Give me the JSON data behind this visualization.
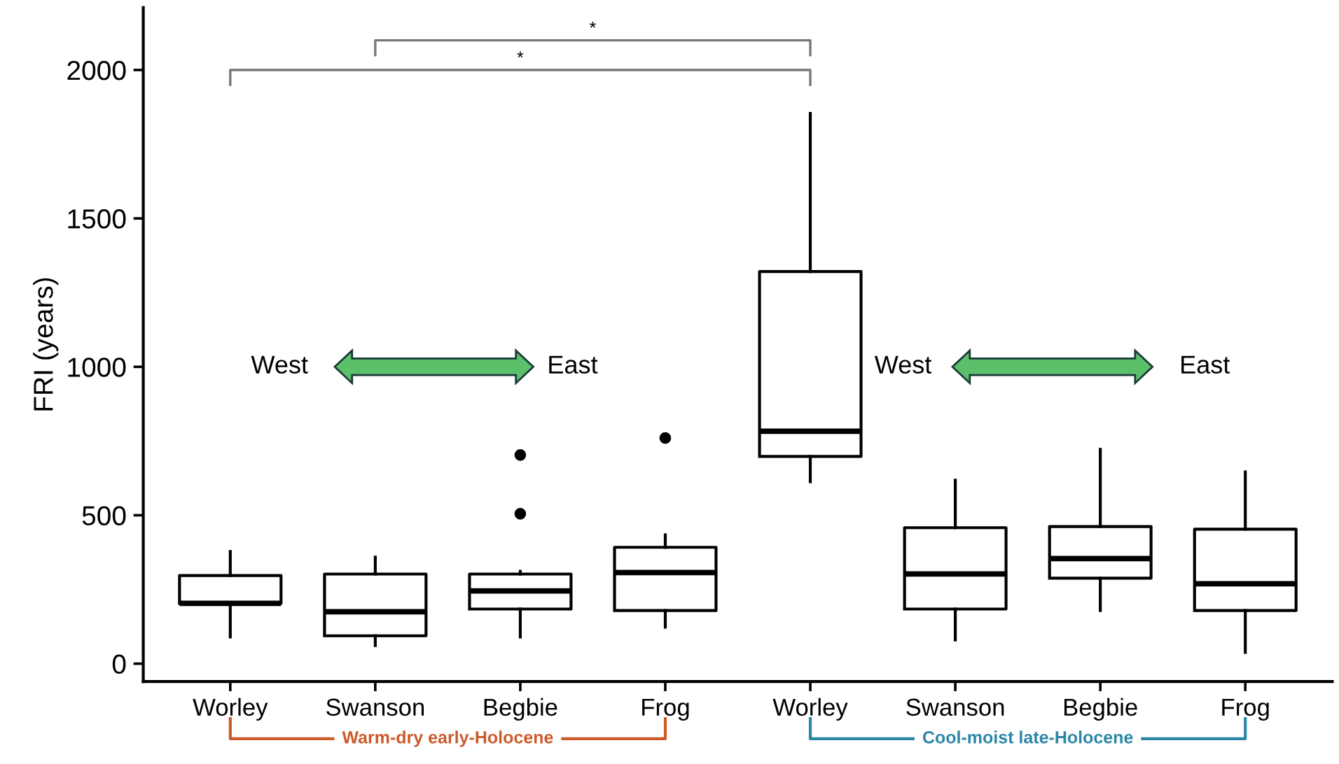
{
  "chart_data": {
    "type": "box",
    "ylabel": "FRI (years)",
    "categories": [
      "Worley",
      "Swanson",
      "Begbie",
      "Frog",
      "Worley",
      "Swanson",
      "Begbie",
      "Frog"
    ],
    "boxes": [
      {
        "low": 90,
        "q1": 203,
        "median": 203,
        "q3": 297,
        "high": 378
      },
      {
        "low": 61,
        "q1": 94,
        "median": 175,
        "q3": 302,
        "high": 359
      },
      {
        "low": 90,
        "q1": 184,
        "median": 245,
        "q3": 302,
        "high": 311,
        "outliers": [
          505,
          703
        ]
      },
      {
        "low": 123,
        "q1": 179,
        "median": 307,
        "q3": 392,
        "high": 434,
        "outliers": [
          760
        ]
      },
      {
        "low": 613,
        "q1": 698,
        "median": 783,
        "q3": 1321,
        "high": 1854
      },
      {
        "low": 80,
        "q1": 184,
        "median": 302,
        "q3": 458,
        "high": 618
      },
      {
        "low": 179,
        "q1": 288,
        "median": 354,
        "q3": 462,
        "high": 722
      },
      {
        "low": 38,
        "q1": 179,
        "median": 269,
        "q3": 453,
        "high": 646
      }
    ],
    "ylim": [
      -60,
      2210
    ],
    "yticks": [
      0,
      500,
      1000,
      1500,
      2000
    ],
    "grid": false,
    "annotations": [
      "*",
      "*",
      "West",
      "East",
      "West",
      "East",
      "Warm-dry early-Holocene",
      "Cool-moist late-Holocene"
    ]
  }
}
